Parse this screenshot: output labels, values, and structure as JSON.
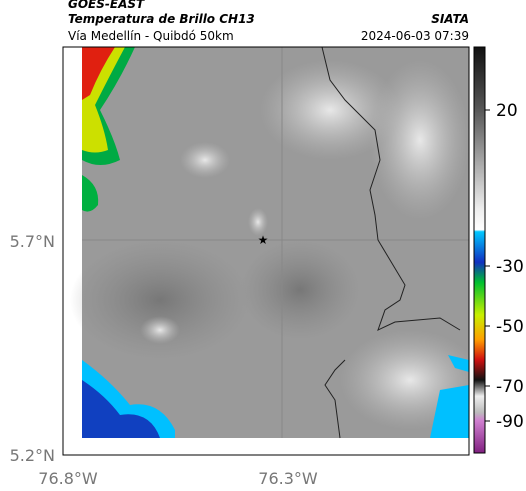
{
  "header": {
    "title": "GOES-EAST",
    "subtitle": "Temperatura de Brillo CH13",
    "location": "Vía Medellín - Quibdó 50km",
    "source": "SIATA",
    "datetime": "2024-06-03 07:39"
  },
  "map": {
    "lat_ticks": [
      "5.7°N",
      "5.2°N"
    ],
    "lon_ticks": [
      "76.8°W",
      "76.3°W"
    ]
  },
  "colorbar": {
    "ticks": [
      20,
      -30,
      -50,
      -70,
      -90
    ]
  }
}
